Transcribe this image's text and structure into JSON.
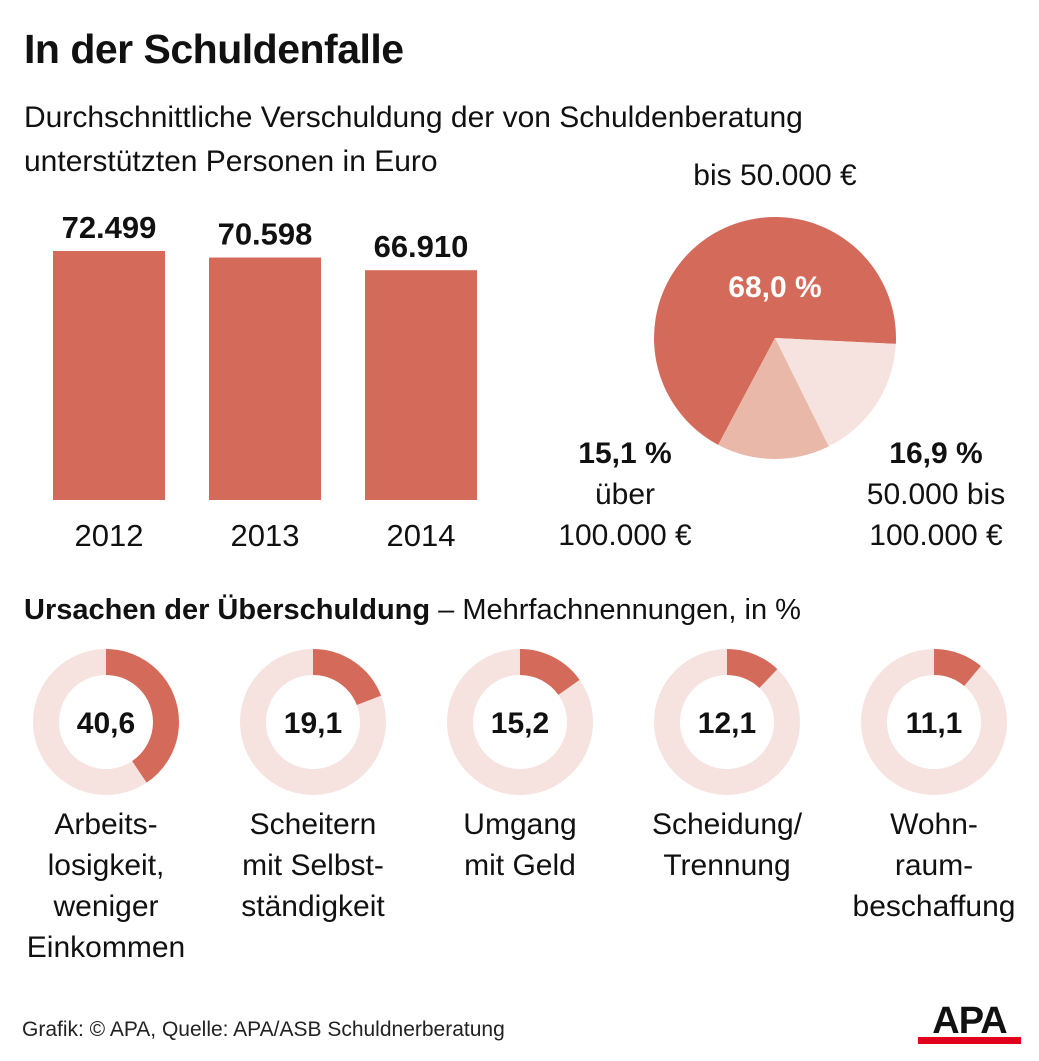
{
  "title": "In der Schuldenfalle",
  "subtitle": "Durchschnittliche Verschuldung der von Schuldenberatung unterstützten Personen in Euro",
  "colors": {
    "bar": "#d46b5a",
    "pie_main": "#d46b5a",
    "pie_medium": "#eab8a8",
    "pie_light": "#f6e3e0",
    "donut_track": "#f6e3e0",
    "donut_fill": "#d46b5a",
    "text": "#111111"
  },
  "chart_data": [
    {
      "type": "bar",
      "title": "Durchschnittliche Verschuldung der von Schuldenberatung unterstützten Personen in Euro",
      "categories": [
        "2012",
        "2013",
        "2014"
      ],
      "values": [
        72499,
        70598,
        66910
      ],
      "value_labels": [
        "72.499",
        "70.598",
        "66.910"
      ],
      "ylim": [
        0,
        72499
      ]
    },
    {
      "type": "pie",
      "slices": [
        {
          "name": "bis 50.000 €",
          "value": 68.0,
          "label": "68,0 %",
          "caption": "bis 50.000 €"
        },
        {
          "name": "50.000 bis 100.000 €",
          "value": 16.9,
          "label": "16,9 %",
          "caption_lines": [
            "50.000 bis",
            "100.000 €"
          ]
        },
        {
          "name": "über 100.000 €",
          "value": 15.1,
          "label": "15,1 %",
          "caption_lines": [
            "über",
            "100.000 €"
          ]
        }
      ]
    },
    {
      "type": "donut",
      "title": "Ursachen der Überschuldung",
      "subtitle": "– Mehrfachnennungen, in %",
      "items": [
        {
          "value": 40.6,
          "label": "40,6",
          "lines": [
            "Arbeits-",
            "losigkeit,",
            "weniger",
            "Einkommen"
          ]
        },
        {
          "value": 19.1,
          "label": "19,1",
          "lines": [
            "Scheitern",
            "mit Selbst-",
            "ständigkeit"
          ]
        },
        {
          "value": 15.2,
          "label": "15,2",
          "lines": [
            "Umgang",
            "mit Geld"
          ]
        },
        {
          "value": 12.1,
          "label": "12,1",
          "lines": [
            "Scheidung/",
            "Trennung"
          ]
        },
        {
          "value": 11.1,
          "label": "11,1",
          "lines": [
            "Wohn-",
            "raum-",
            "beschaffung"
          ]
        }
      ]
    }
  ],
  "footer": {
    "source": "Grafik: © APA, Quelle: APA/ASB Schuldnerberatung",
    "logo_text": "APA"
  }
}
